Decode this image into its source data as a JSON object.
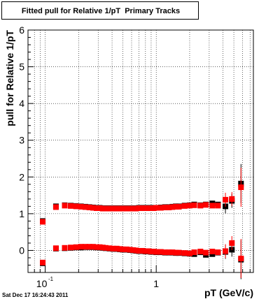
{
  "title": "Fitted pull for Relative 1/pT  Primary Tracks",
  "footer": "Sat Dec 17 16:24:43 2011",
  "chart_data": {
    "type": "scatter",
    "title": "Fitted pull for Relative 1/pT  Primary Tracks",
    "xlabel": "pT (GeV/c)",
    "ylabel": "pull for Relative 1/pT",
    "xscale": "log",
    "xlim": [
      0.07,
      7.5
    ],
    "ylim": [
      -0.6,
      6
    ],
    "grid": true,
    "yticks": [
      0,
      1,
      2,
      3,
      4,
      5,
      6
    ],
    "xtick_labels": [
      {
        "x": 0.1,
        "base": "10",
        "exp": "-1"
      },
      {
        "x": 1,
        "base": "1",
        "exp": ""
      }
    ],
    "series": [
      {
        "color": "#000000",
        "marker": "square",
        "points": [
          [
            0.095,
            0.8
          ],
          [
            0.125,
            1.2
          ],
          [
            0.15,
            1.23
          ],
          [
            0.17,
            1.22
          ],
          [
            0.19,
            1.21
          ],
          [
            0.21,
            1.2
          ],
          [
            0.23,
            1.19
          ],
          [
            0.25,
            1.18
          ],
          [
            0.27,
            1.17
          ],
          [
            0.29,
            1.16
          ],
          [
            0.31,
            1.16
          ],
          [
            0.33,
            1.15
          ],
          [
            0.35,
            1.15
          ],
          [
            0.38,
            1.15
          ],
          [
            0.41,
            1.15
          ],
          [
            0.44,
            1.15
          ],
          [
            0.47,
            1.15
          ],
          [
            0.5,
            1.15
          ],
          [
            0.54,
            1.15
          ],
          [
            0.58,
            1.15
          ],
          [
            0.62,
            1.15
          ],
          [
            0.66,
            1.15
          ],
          [
            0.7,
            1.16
          ],
          [
            0.75,
            1.16
          ],
          [
            0.8,
            1.16
          ],
          [
            0.85,
            1.16
          ],
          [
            0.9,
            1.16
          ],
          [
            0.95,
            1.16
          ],
          [
            1.0,
            1.16
          ],
          [
            1.1,
            1.17
          ],
          [
            1.2,
            1.18
          ],
          [
            1.3,
            1.18
          ],
          [
            1.4,
            1.19
          ],
          [
            1.5,
            1.2
          ],
          [
            1.6,
            1.2
          ],
          [
            1.8,
            1.22
          ],
          [
            2.0,
            1.23
          ],
          [
            2.2,
            1.25
          ],
          [
            2.5,
            1.23
          ],
          [
            2.8,
            1.25
          ],
          [
            3.2,
            1.28
          ],
          [
            3.6,
            1.25
          ],
          [
            4.2,
            1.2
          ],
          [
            4.8,
            1.35
          ],
          [
            5.8,
            1.82
          ],
          [
            0.095,
            -0.35
          ],
          [
            0.125,
            0.05
          ],
          [
            0.15,
            0.06
          ],
          [
            0.17,
            0.07
          ],
          [
            0.19,
            0.08
          ],
          [
            0.21,
            0.08
          ],
          [
            0.23,
            0.09
          ],
          [
            0.25,
            0.09
          ],
          [
            0.27,
            0.09
          ],
          [
            0.29,
            0.08
          ],
          [
            0.31,
            0.08
          ],
          [
            0.33,
            0.07
          ],
          [
            0.35,
            0.06
          ],
          [
            0.38,
            0.05
          ],
          [
            0.41,
            0.04
          ],
          [
            0.44,
            0.04
          ],
          [
            0.47,
            0.03
          ],
          [
            0.5,
            0.02
          ],
          [
            0.54,
            0.02
          ],
          [
            0.58,
            0.01
          ],
          [
            0.62,
            0.0
          ],
          [
            0.66,
            -0.01
          ],
          [
            0.7,
            -0.02
          ],
          [
            0.75,
            -0.02
          ],
          [
            0.8,
            -0.03
          ],
          [
            0.85,
            -0.03
          ],
          [
            0.9,
            -0.04
          ],
          [
            0.95,
            -0.04
          ],
          [
            1.0,
            -0.05
          ],
          [
            1.1,
            -0.05
          ],
          [
            1.2,
            -0.06
          ],
          [
            1.3,
            -0.06
          ],
          [
            1.4,
            -0.06
          ],
          [
            1.5,
            -0.07
          ],
          [
            1.6,
            -0.07
          ],
          [
            1.8,
            -0.08
          ],
          [
            2.0,
            -0.09
          ],
          [
            2.2,
            -0.1
          ],
          [
            2.5,
            -0.05
          ],
          [
            2.8,
            -0.12
          ],
          [
            3.2,
            -0.1
          ],
          [
            3.6,
            -0.06
          ],
          [
            4.2,
            -0.04
          ],
          [
            4.8,
            0.02
          ],
          [
            5.8,
            -0.25
          ]
        ]
      },
      {
        "color": "#ff0000",
        "marker": "square",
        "points": [
          [
            0.095,
            0.78
          ],
          [
            0.125,
            1.18
          ],
          [
            0.15,
            1.22
          ],
          [
            0.17,
            1.21
          ],
          [
            0.19,
            1.2
          ],
          [
            0.21,
            1.19
          ],
          [
            0.23,
            1.18
          ],
          [
            0.25,
            1.17
          ],
          [
            0.27,
            1.16
          ],
          [
            0.29,
            1.15
          ],
          [
            0.31,
            1.15
          ],
          [
            0.33,
            1.14
          ],
          [
            0.35,
            1.14
          ],
          [
            0.38,
            1.14
          ],
          [
            0.41,
            1.14
          ],
          [
            0.44,
            1.14
          ],
          [
            0.47,
            1.14
          ],
          [
            0.5,
            1.14
          ],
          [
            0.54,
            1.14
          ],
          [
            0.58,
            1.14
          ],
          [
            0.62,
            1.14
          ],
          [
            0.66,
            1.14
          ],
          [
            0.7,
            1.15
          ],
          [
            0.75,
            1.15
          ],
          [
            0.8,
            1.15
          ],
          [
            0.85,
            1.15
          ],
          [
            0.9,
            1.15
          ],
          [
            0.95,
            1.15
          ],
          [
            1.0,
            1.16
          ],
          [
            1.1,
            1.16
          ],
          [
            1.2,
            1.17
          ],
          [
            1.3,
            1.17
          ],
          [
            1.4,
            1.18
          ],
          [
            1.5,
            1.19
          ],
          [
            1.6,
            1.19
          ],
          [
            1.8,
            1.21
          ],
          [
            2.0,
            1.22
          ],
          [
            2.2,
            1.23
          ],
          [
            2.5,
            1.22
          ],
          [
            2.8,
            1.24
          ],
          [
            3.2,
            1.22
          ],
          [
            3.6,
            1.22
          ],
          [
            4.2,
            1.38
          ],
          [
            4.8,
            1.4
          ],
          [
            5.8,
            1.72
          ],
          [
            0.095,
            -0.33
          ],
          [
            0.125,
            0.06
          ],
          [
            0.15,
            0.07
          ],
          [
            0.17,
            0.08
          ],
          [
            0.19,
            0.09
          ],
          [
            0.21,
            0.1
          ],
          [
            0.23,
            0.1
          ],
          [
            0.25,
            0.1
          ],
          [
            0.27,
            0.1
          ],
          [
            0.29,
            0.09
          ],
          [
            0.31,
            0.09
          ],
          [
            0.33,
            0.08
          ],
          [
            0.35,
            0.07
          ],
          [
            0.38,
            0.06
          ],
          [
            0.41,
            0.05
          ],
          [
            0.44,
            0.05
          ],
          [
            0.47,
            0.04
          ],
          [
            0.5,
            0.03
          ],
          [
            0.54,
            0.03
          ],
          [
            0.58,
            0.02
          ],
          [
            0.62,
            0.01
          ],
          [
            0.66,
            0.0
          ],
          [
            0.7,
            -0.01
          ],
          [
            0.75,
            -0.01
          ],
          [
            0.8,
            -0.02
          ],
          [
            0.85,
            -0.02
          ],
          [
            0.9,
            -0.03
          ],
          [
            0.95,
            -0.03
          ],
          [
            1.0,
            -0.04
          ],
          [
            1.1,
            -0.04
          ],
          [
            1.2,
            -0.05
          ],
          [
            1.3,
            -0.05
          ],
          [
            1.4,
            -0.05
          ],
          [
            1.5,
            -0.06
          ],
          [
            1.6,
            -0.06
          ],
          [
            1.8,
            -0.07
          ],
          [
            2.0,
            -0.08
          ],
          [
            2.2,
            -0.05
          ],
          [
            2.5,
            -0.03
          ],
          [
            2.8,
            -0.06
          ],
          [
            3.2,
            -0.03
          ],
          [
            3.6,
            -0.05
          ],
          [
            4.2,
            -0.02
          ],
          [
            4.8,
            0.2
          ],
          [
            5.8,
            -0.22
          ]
        ]
      }
    ]
  }
}
